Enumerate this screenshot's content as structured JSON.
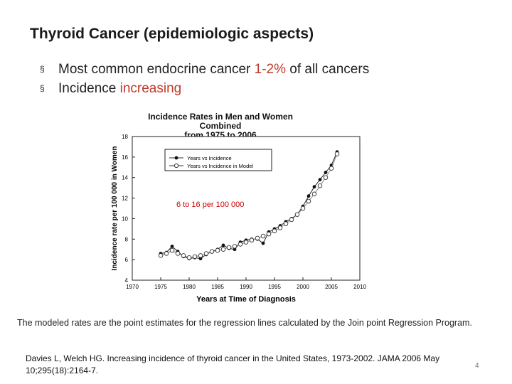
{
  "slide": {
    "title": "Thyroid Cancer (epidemiologic aspects)",
    "bullets": [
      {
        "pre": "Most common endocrine cancer ",
        "highlight": "1-2%",
        "post": " of all cancers"
      },
      {
        "pre": "Incidence ",
        "highlight": "increasing",
        "post": ""
      }
    ],
    "bullet_symbol": "§",
    "note": "The modeled rates are the point estimates for the regression lines calculated by the Join point Regression Program.",
    "citation": "Davies L, Welch HG. Increasing incidence of thyroid cancer in the United States, 1973-2002. JAMA 2006 May 10;295(18):2164-7.",
    "page_number": "4",
    "highlight_color": "#c0392b"
  },
  "chart_data": {
    "type": "line",
    "title_lines": [
      "Incidence Rates in Men and Women Combined",
      "from 1975 to 2006"
    ],
    "xlabel": "Years at Time of Diagnosis",
    "ylabel": "Incidence rate per 100 000 in Women",
    "xlim": [
      1970,
      2010
    ],
    "ylim": [
      4,
      18
    ],
    "xticks": [
      1970,
      1975,
      1980,
      1985,
      1990,
      1995,
      2000,
      2005,
      2010
    ],
    "yticks": [
      4,
      6,
      8,
      10,
      12,
      14,
      16,
      18
    ],
    "annotation": "6 to 16 per 100 000",
    "annotation_color": "#cc0000",
    "series": [
      {
        "name": "Years vs Incidence",
        "marker": "filled",
        "x": [
          1975,
          1976,
          1977,
          1978,
          1979,
          1980,
          1981,
          1982,
          1983,
          1984,
          1985,
          1986,
          1987,
          1988,
          1989,
          1990,
          1991,
          1992,
          1993,
          1994,
          1995,
          1996,
          1997,
          1998,
          1999,
          2000,
          2001,
          2002,
          2003,
          2004,
          2005,
          2006
        ],
        "y": [
          6.6,
          6.7,
          7.3,
          6.8,
          6.3,
          6.1,
          6.2,
          6.1,
          6.5,
          6.8,
          7.0,
          7.4,
          7.1,
          7.0,
          7.7,
          7.9,
          8.0,
          8.0,
          7.6,
          8.7,
          9.0,
          9.3,
          9.7,
          10.0,
          10.4,
          11.2,
          12.2,
          13.1,
          13.8,
          14.5,
          15.2,
          16.5
        ]
      },
      {
        "name": "Years vs Incidence in Model",
        "marker": "open",
        "x": [
          1975,
          1976,
          1977,
          1978,
          1979,
          1980,
          1981,
          1982,
          1983,
          1984,
          1985,
          1986,
          1987,
          1988,
          1989,
          1990,
          1991,
          1992,
          1993,
          1994,
          1995,
          1996,
          1997,
          1998,
          1999,
          2000,
          2001,
          2002,
          2003,
          2004,
          2005,
          2006
        ],
        "y": [
          6.4,
          6.6,
          6.9,
          6.6,
          6.4,
          6.2,
          6.3,
          6.4,
          6.6,
          6.8,
          6.9,
          7.0,
          7.2,
          7.3,
          7.5,
          7.7,
          7.9,
          8.1,
          8.3,
          8.5,
          8.8,
          9.1,
          9.5,
          9.9,
          10.4,
          11.0,
          11.7,
          12.4,
          13.2,
          14.0,
          14.9,
          16.3
        ]
      }
    ]
  }
}
